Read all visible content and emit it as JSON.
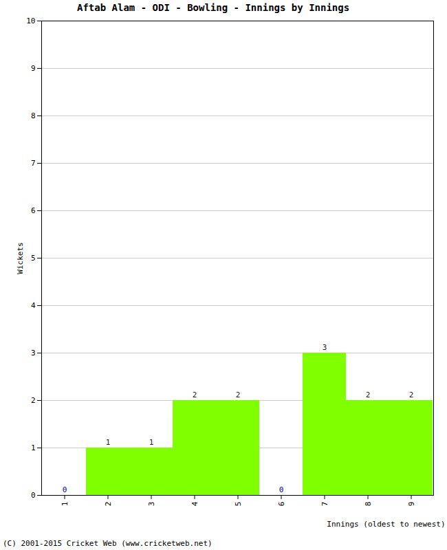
{
  "chart_data": {
    "type": "bar",
    "title": "Aftab Alam - ODI - Bowling - Innings by Innings",
    "x_label": "Innings (oldest to newest)",
    "y_label": "Wickets",
    "caption": "(C) 2001-2015 Cricket Web (www.cricketweb.net)",
    "categories": [
      "1",
      "2",
      "3",
      "4",
      "5",
      "6",
      "7",
      "8",
      "9"
    ],
    "values": [
      0,
      1,
      1,
      2,
      2,
      0,
      3,
      2,
      2
    ],
    "color": "#80ff00",
    "ylim": [
      0,
      10
    ],
    "yticks": [
      0,
      1,
      2,
      3,
      4,
      5,
      6,
      7,
      8,
      9,
      10
    ],
    "grid": true,
    "data_labels": true
  }
}
